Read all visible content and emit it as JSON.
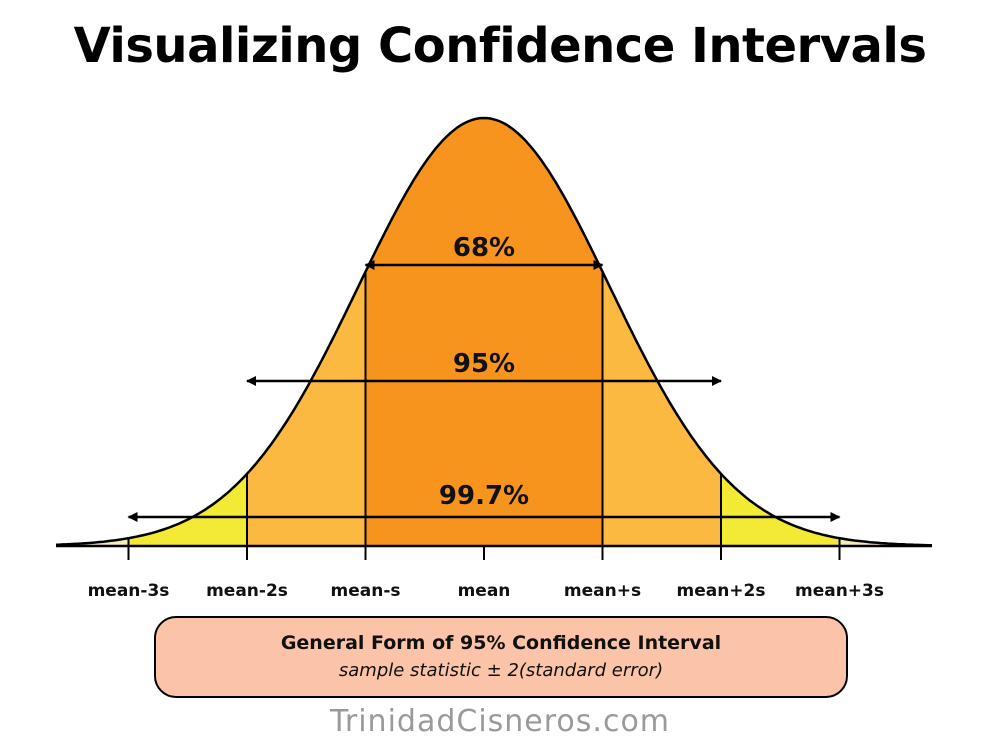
{
  "title": "Visualizing Confidence Intervals",
  "axis_labels": [
    "mean-3s",
    "mean-2s",
    "mean-s",
    "mean",
    "mean+s",
    "mean+2s",
    "mean+3s"
  ],
  "intervals": [
    {
      "label": "68%",
      "k": 1
    },
    {
      "label": "95%",
      "k": 2
    },
    {
      "label": "99.7%",
      "k": 3
    }
  ],
  "band_colors": {
    "within_1s": "#f6941e",
    "within_2s": "#fbb941",
    "within_3s": "#f3ea35",
    "tails": "#f3efb8"
  },
  "formula": {
    "title": "General Form of 95% Confidence Interval",
    "text": "sample statistic ± 2(standard error)"
  },
  "credit": "TrinidadCisneros.com"
}
